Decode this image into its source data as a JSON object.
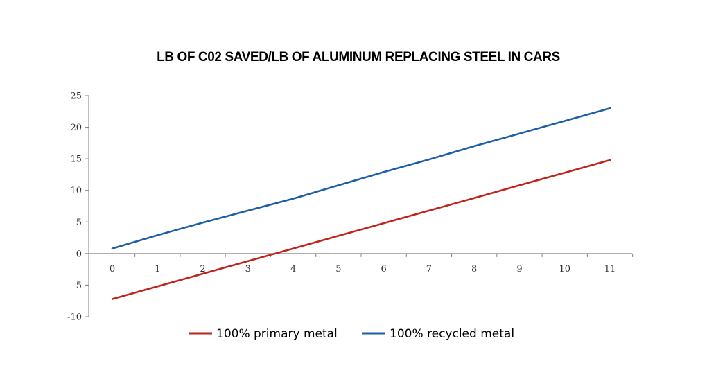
{
  "chart_data": {
    "type": "line",
    "title": "LB OF C02 SAVED/LB OF ALUMINUM REPLACING STEEL IN CARS",
    "xlabel": "",
    "ylabel": "",
    "x": [
      0,
      1,
      2,
      3,
      4,
      5,
      6,
      7,
      8,
      9,
      10,
      11
    ],
    "x_tick_labels": [
      "0",
      "1",
      "2",
      "3",
      "4",
      "5",
      "6",
      "7",
      "8",
      "9",
      "10",
      "11"
    ],
    "y_tick_labels": [
      "25",
      "20",
      "15",
      "10",
      "5",
      "0",
      "-5",
      "-10"
    ],
    "y_ticks": [
      25,
      20,
      15,
      10,
      5,
      0,
      -5,
      -10
    ],
    "ylim": [
      -10,
      25
    ],
    "grid": false,
    "legend_position": "bottom",
    "series": [
      {
        "name": "100% primary metal",
        "color": "#c0231c",
        "values": [
          -7.2,
          -5.2,
          -3.2,
          -1.2,
          0.8,
          2.8,
          4.8,
          6.8,
          8.8,
          10.8,
          12.8,
          14.8
        ]
      },
      {
        "name": "100% recycled metal",
        "color": "#1d5fa5",
        "values": [
          0.8,
          2.9,
          4.9,
          6.8,
          8.7,
          10.8,
          12.9,
          14.9,
          17.0,
          19.0,
          21.0,
          23.0
        ]
      }
    ]
  }
}
